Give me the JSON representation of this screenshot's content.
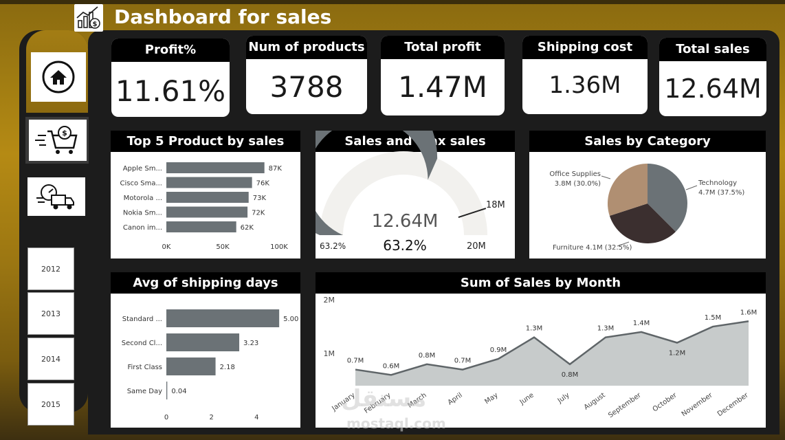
{
  "header": {
    "title": "Dashboard for sales",
    "logo_icon": "sales-chart-icon"
  },
  "nav": {
    "items": [
      {
        "icon": "home-icon"
      },
      {
        "icon": "shopping-cart-icon"
      },
      {
        "icon": "delivery-truck-icon"
      }
    ],
    "years": [
      "2012",
      "2013",
      "2014",
      "2015"
    ]
  },
  "kpis": [
    {
      "label": "Profit%",
      "value": "11.61%"
    },
    {
      "label": "Num of products",
      "value": "3788"
    },
    {
      "label": "Total profit",
      "value": "1.47M"
    },
    {
      "label": "Shipping cost",
      "value": "1.36M"
    },
    {
      "label": "Total sales",
      "value": "12.64M"
    }
  ],
  "colors": {
    "bar": "#6b7276",
    "area": "#c7cbcb",
    "gauge_fill": "#6b7276",
    "gauge_bg": "#f2f1ee",
    "pie_tech": "#6b7276",
    "pie_furn": "#3b2f2f",
    "pie_office": "#b08f72"
  },
  "chart_data": [
    {
      "type": "bar",
      "orientation": "horizontal",
      "title": "Top 5 Product by sales",
      "categories": [
        "Apple Sm...",
        "Cisco Sma...",
        "Motorola ...",
        "Nokia Sm...",
        "Canon im..."
      ],
      "values": [
        87000,
        76000,
        73000,
        72000,
        62000
      ],
      "data_labels": [
        "87K",
        "76K",
        "73K",
        "72K",
        "62K"
      ],
      "xlim": [
        0,
        100000
      ],
      "x_ticks": [
        "0K",
        "50K",
        "100K"
      ]
    },
    {
      "type": "gauge",
      "title": "Sales and max sales",
      "value": 12.64,
      "value_label": "12.64M",
      "min": 0,
      "max": 20,
      "max_label": "20M",
      "target": 18,
      "target_label": "18M",
      "percent_label": "63.2%",
      "left_label": "63.2%"
    },
    {
      "type": "pie",
      "title": "Sales by Category",
      "slices": [
        {
          "name": "Technology",
          "value": 37.5,
          "label_top": "Technology",
          "label_bottom": "4.7M (37.5%)"
        },
        {
          "name": "Furniture",
          "value": 32.5,
          "label_top": "Furniture 4.1M (32.5%)",
          "label_bottom": ""
        },
        {
          "name": "Office Supplies",
          "value": 30.0,
          "label_top": "Office Supplies",
          "label_bottom": "3.8M (30.0%)"
        }
      ]
    },
    {
      "type": "bar",
      "orientation": "horizontal",
      "title": "Avg of shipping days",
      "categories": [
        "Standard ...",
        "Second Cl...",
        "First Class",
        "Same Day"
      ],
      "values": [
        5.0,
        3.23,
        2.18,
        0.04
      ],
      "data_labels": [
        "5.00",
        "3.23",
        "2.18",
        "0.04"
      ],
      "xlim": [
        0,
        5.3
      ],
      "x_ticks": [
        "0",
        "2",
        "4"
      ],
      "x_tick_values": [
        0,
        2,
        4
      ]
    },
    {
      "type": "area",
      "title": "Sum of Sales by Month",
      "categories": [
        "January",
        "February",
        "March",
        "April",
        "May",
        "June",
        "July",
        "August",
        "September",
        "October",
        "November",
        "December"
      ],
      "values": [
        0.7,
        0.6,
        0.8,
        0.7,
        0.9,
        1.3,
        0.8,
        1.3,
        1.4,
        1.2,
        1.5,
        1.6
      ],
      "data_labels": [
        "0.7M",
        "0.6M",
        "0.8M",
        "0.7M",
        "0.9M",
        "1.3M",
        "0.8M",
        "1.3M",
        "1.4M",
        "1.2M",
        "1.5M",
        "1.6M"
      ],
      "ylim": [
        0.4,
        2.0
      ],
      "y_ticks": [
        "1M",
        "2M"
      ],
      "y_tick_values": [
        1,
        2
      ]
    }
  ],
  "watermark": {
    "arabic": "مستقل",
    "latin": "mostaql.com"
  }
}
